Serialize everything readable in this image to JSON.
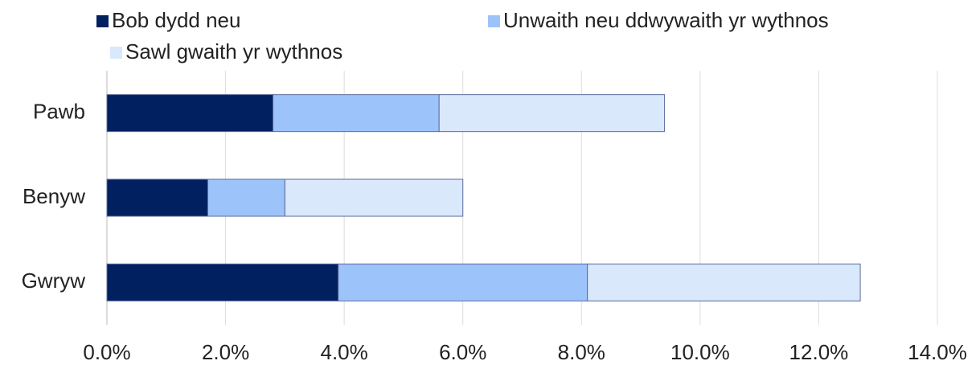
{
  "chart_data": {
    "type": "stacked_barh",
    "categories": [
      "Pawb",
      "Benyw",
      "Gwryw"
    ],
    "series": [
      {
        "name": "Bob dydd neu",
        "color": "#002060",
        "values": [
          2.8,
          1.7,
          3.9
        ]
      },
      {
        "name": "Unwaith neu ddwywaith yr wythnos",
        "color": "#9dc3fb",
        "values": [
          2.8,
          1.3,
          4.2
        ]
      },
      {
        "name": "Sawl gwaith yr wythnos",
        "color": "#dae8fc",
        "values": [
          3.8,
          3.0,
          4.6
        ]
      }
    ],
    "xlim": [
      0,
      14
    ],
    "xticks": [
      {
        "value": 0,
        "label": "0.0%"
      },
      {
        "value": 2,
        "label": "2.0%"
      },
      {
        "value": 4,
        "label": "4.0%"
      },
      {
        "value": 6,
        "label": "6.0%"
      },
      {
        "value": 8,
        "label": "8.0%"
      },
      {
        "value": 10,
        "label": "10.0%"
      },
      {
        "value": 12,
        "label": "12.0%"
      },
      {
        "value": 14,
        "label": "14.0%"
      }
    ],
    "grid": true
  }
}
